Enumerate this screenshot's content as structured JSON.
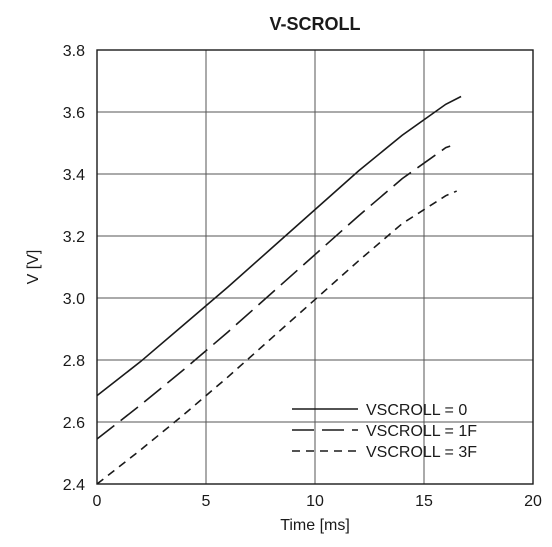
{
  "chart_data": {
    "type": "line",
    "title": "V-SCROLL",
    "xlabel": "Time [ms]",
    "ylabel": "V [V]",
    "xlim": [
      0,
      20
    ],
    "ylim": [
      2.4,
      3.8
    ],
    "xticks": [
      0,
      5,
      10,
      15,
      20
    ],
    "yticks": [
      2.4,
      2.6,
      2.8,
      3.0,
      3.2,
      3.4,
      3.6,
      3.8
    ],
    "ytick_labels": [
      "2.4",
      "2.6",
      "2.8",
      "3.0",
      "3.2",
      "3.4",
      "3.6",
      "3.8"
    ],
    "grid": true,
    "legend_position": "bottom-right",
    "series": [
      {
        "name": "VSCROLL = 0",
        "dash": "solid",
        "x": [
          0,
          2,
          4,
          6,
          8,
          10,
          12,
          14,
          16,
          16.7
        ],
        "y": [
          2.685,
          2.795,
          2.915,
          3.035,
          3.16,
          3.285,
          3.41,
          3.525,
          3.625,
          3.65
        ]
      },
      {
        "name": "VSCROLL = 1F",
        "dash": "long-dash",
        "x": [
          0,
          2,
          4,
          6,
          8,
          10,
          12,
          14,
          16,
          16.2
        ],
        "y": [
          2.545,
          2.655,
          2.77,
          2.89,
          3.015,
          3.14,
          3.265,
          3.385,
          3.485,
          3.49
        ]
      },
      {
        "name": "VSCROLL = 3F",
        "dash": "short-dash",
        "x": [
          0,
          2,
          4,
          6,
          8,
          10,
          12,
          14,
          16,
          16.5
        ],
        "y": [
          2.4,
          2.51,
          2.625,
          2.745,
          2.87,
          2.995,
          3.12,
          3.24,
          3.33,
          3.345
        ]
      }
    ]
  }
}
